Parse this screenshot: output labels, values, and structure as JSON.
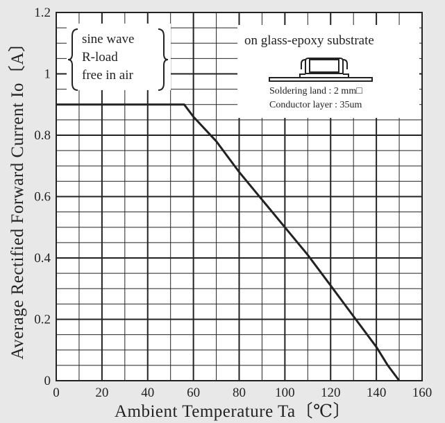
{
  "chart_data": {
    "type": "line",
    "title": "",
    "xlabel": "Ambient Temperature Ta〔℃〕",
    "ylabel": "Average Rectified Forward Current Io〔A〕",
    "xlim": [
      0,
      160
    ],
    "ylim": [
      0,
      1.2
    ],
    "x_ticks": [
      "0",
      "20",
      "40",
      "60",
      "80",
      "100",
      "120",
      "140",
      "160"
    ],
    "y_ticks": [
      "0",
      "0.2",
      "0.4",
      "0.6",
      "0.8",
      "1",
      "1.2"
    ],
    "grid": true,
    "series": [
      {
        "x": [
          0,
          56,
          60,
          70,
          80,
          90,
          100,
          110,
          120,
          130,
          140,
          145,
          150
        ],
        "y": [
          0.9,
          0.9,
          0.86,
          0.78,
          0.68,
          0.59,
          0.5,
          0.41,
          0.31,
          0.21,
          0.11,
          0.05,
          0
        ]
      }
    ],
    "annotations": {
      "conditions": [
        "sine wave",
        "R-load",
        "free in air"
      ],
      "mounting_title": "on glass-epoxy substrate",
      "mounting_lines": [
        "Soldering land : 2 mm□",
        "Conductor layer : 35um"
      ]
    }
  }
}
